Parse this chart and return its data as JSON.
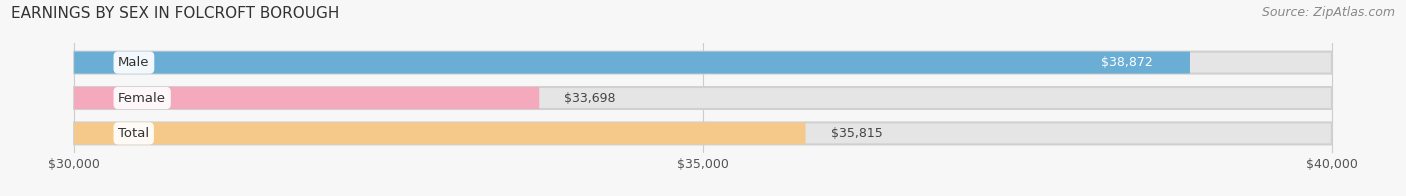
{
  "title": "EARNINGS BY SEX IN FOLCROFT BOROUGH",
  "source": "Source: ZipAtlas.com",
  "categories": [
    "Male",
    "Female",
    "Total"
  ],
  "values": [
    38872,
    33698,
    35815
  ],
  "bar_colors": [
    "#6aaed6",
    "#f4a9bc",
    "#f5c98a"
  ],
  "value_text_colors": [
    "#ffffff",
    "#555555",
    "#555555"
  ],
  "value_inside": [
    true,
    false,
    false
  ],
  "x_min": 30000,
  "x_max": 40000,
  "x_ticks": [
    30000,
    35000,
    40000
  ],
  "x_tick_labels": [
    "$30,000",
    "$35,000",
    "$40,000"
  ],
  "bg_color": "#f7f7f7",
  "bar_bg_color": "#e5e5e5",
  "title_fontsize": 11,
  "source_fontsize": 9,
  "label_fontsize": 9.5,
  "value_fontsize": 9,
  "tick_fontsize": 9
}
